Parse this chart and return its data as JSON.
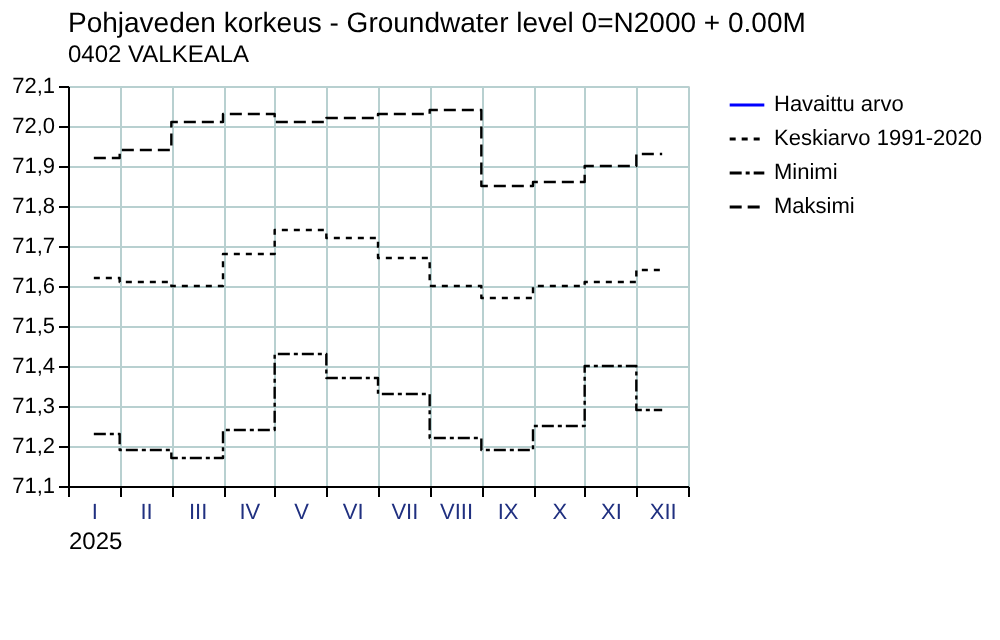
{
  "chart_data": {
    "type": "step",
    "title": "Pohjaveden korkeus - Groundwater level 0=N2000 + 0.00M",
    "subtitle": "0402 VALKEALA",
    "xlabel": "2025",
    "categories": [
      "I",
      "II",
      "III",
      "IV",
      "V",
      "VI",
      "VII",
      "VIII",
      "IX",
      "X",
      "XI",
      "XII"
    ],
    "series": [
      {
        "name": "Havaittu arvo",
        "color": "#0000ff",
        "line_style": "solid",
        "values": [
          null,
          null,
          null,
          null,
          null,
          null,
          null,
          null,
          null,
          null,
          null,
          null
        ]
      },
      {
        "name": "Keskiarvo 1991-2020",
        "color": "#000000",
        "line_style": "dotted",
        "values": [
          71.62,
          71.61,
          71.6,
          71.68,
          71.74,
          71.72,
          71.67,
          71.6,
          71.57,
          71.6,
          71.61,
          71.64
        ]
      },
      {
        "name": "Minimi",
        "color": "#000000",
        "line_style": "dashdot",
        "values": [
          71.23,
          71.19,
          71.17,
          71.24,
          71.43,
          71.37,
          71.33,
          71.22,
          71.19,
          71.25,
          71.4,
          71.29
        ]
      },
      {
        "name": "Maksimi",
        "color": "#000000",
        "line_style": "dashed",
        "values": [
          71.92,
          71.94,
          72.01,
          72.03,
          72.01,
          72.02,
          72.03,
          72.04,
          71.85,
          71.86,
          71.9,
          71.93
        ]
      }
    ],
    "ylim": [
      71.1,
      72.1
    ],
    "yticks": [
      {
        "value": 71.1,
        "label": "71,1"
      },
      {
        "value": 71.2,
        "label": "71,2"
      },
      {
        "value": 71.3,
        "label": "71,3"
      },
      {
        "value": 71.4,
        "label": "71,4"
      },
      {
        "value": 71.5,
        "label": "71,5"
      },
      {
        "value": 71.6,
        "label": "71,6"
      },
      {
        "value": 71.7,
        "label": "71,7"
      },
      {
        "value": 71.8,
        "label": "71,8"
      },
      {
        "value": 71.9,
        "label": "71,9"
      },
      {
        "value": 72.0,
        "label": "72,0"
      },
      {
        "value": 72.1,
        "label": "72,1"
      }
    ],
    "grid": true,
    "legend": "right"
  }
}
